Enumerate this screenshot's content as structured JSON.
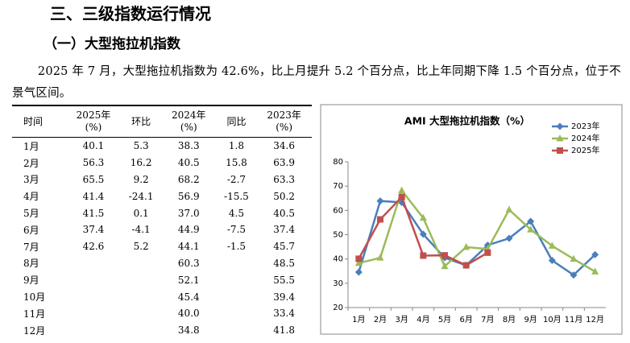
{
  "heading": "三、三级指数运行情况",
  "subheading": "（一）大型拖拉机指数",
  "paragraph": "2025 年 7 月，大型拖拉机指数为 42.6%，比上月提升 5.2 个百分点，比上年同期下降 1.5 个百分点，位于不景气区间。",
  "table": {
    "header": [
      "时间",
      "2025年\n(%)",
      "环比",
      "2024年\n(%)",
      "同比",
      "2023年\n(%)"
    ],
    "rows": [
      [
        "1月",
        "40.1",
        "5.3",
        "38.3",
        "1.8",
        "34.6"
      ],
      [
        "2月",
        "56.3",
        "16.2",
        "40.5",
        "15.8",
        "63.9"
      ],
      [
        "3月",
        "65.5",
        "9.2",
        "68.2",
        "-2.7",
        "63.3"
      ],
      [
        "4月",
        "41.4",
        "-24.1",
        "56.9",
        "-15.5",
        "50.2"
      ],
      [
        "5月",
        "41.5",
        "0.1",
        "37.0",
        "4.5",
        "40.5"
      ],
      [
        "6月",
        "37.4",
        "-4.1",
        "44.9",
        "-7.5",
        "37.4"
      ],
      [
        "7月",
        "42.6",
        "5.2",
        "44.1",
        "-1.5",
        "45.7"
      ],
      [
        "8月",
        null,
        null,
        "60.3",
        null,
        "48.5"
      ],
      [
        "9月",
        null,
        null,
        "52.1",
        null,
        "55.5"
      ],
      [
        "10月",
        null,
        null,
        "45.4",
        null,
        "39.4"
      ],
      [
        "11月",
        null,
        null,
        "40.0",
        null,
        "33.4"
      ],
      [
        "12月",
        null,
        null,
        "34.8",
        null,
        "41.8"
      ]
    ]
  },
  "chart_data": {
    "type": "line",
    "title": "AMI 大型拖拉机指数（%）",
    "categories": [
      "1月",
      "2月",
      "3月",
      "4月",
      "5月",
      "6月",
      "7月",
      "8月",
      "9月",
      "10月",
      "11月",
      "12月"
    ],
    "series": [
      {
        "name": "2023年",
        "color": "#4a7ebb",
        "marker": "diamond",
        "values": [
          34.6,
          63.9,
          63.3,
          50.2,
          40.5,
          37.4,
          45.7,
          48.5,
          55.5,
          39.4,
          33.4,
          41.8
        ]
      },
      {
        "name": "2024年",
        "color": "#9bbb59",
        "marker": "triangle",
        "values": [
          38.3,
          40.5,
          68.2,
          56.9,
          37.0,
          44.9,
          44.1,
          60.3,
          52.1,
          45.4,
          40.0,
          34.8
        ]
      },
      {
        "name": "2025年",
        "color": "#c0504d",
        "marker": "square",
        "values": [
          40.1,
          56.3,
          65.5,
          41.4,
          41.5,
          37.4,
          42.6,
          null,
          null,
          null,
          null,
          null
        ]
      }
    ],
    "ylim": [
      20,
      80
    ],
    "yticks": [
      20,
      30,
      40,
      50,
      60,
      70,
      80
    ],
    "grid": false,
    "legend": "top-right"
  }
}
